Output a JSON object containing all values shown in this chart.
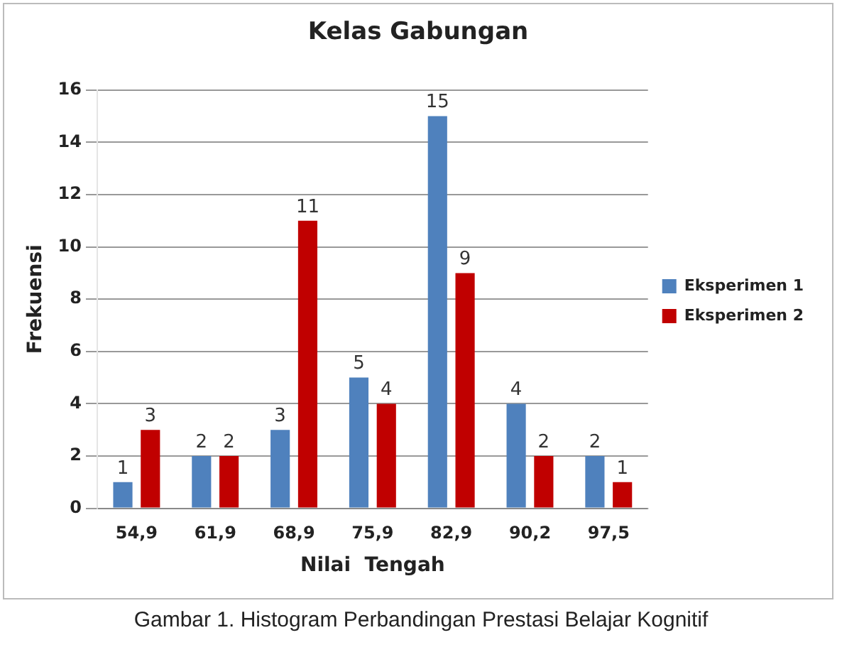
{
  "chart_data": {
    "type": "bar",
    "title": "Kelas Gabungan",
    "xlabel": "Nilai  Tengah",
    "ylabel": "Frekuensi",
    "categories": [
      "54,9",
      "61,9",
      "68,9",
      "75,9",
      "82,9",
      "90,2",
      "97,5"
    ],
    "series": [
      {
        "name": "Eksperimen 1",
        "color": "#4f81bd",
        "values": [
          1,
          2,
          3,
          5,
          15,
          4,
          2
        ]
      },
      {
        "name": "Eksperimen 2",
        "color": "#c00000",
        "values": [
          3,
          2,
          11,
          4,
          9,
          2,
          1
        ]
      }
    ],
    "ylim": [
      0,
      16
    ],
    "yticks": [
      0,
      2,
      4,
      6,
      8,
      10,
      12,
      14,
      16
    ],
    "grid": "y",
    "legend": "right",
    "data_labels": true,
    "annotations": [
      "Gambar 1. Histogram Perbandingan Prestasi Belajar Kognitif"
    ]
  }
}
